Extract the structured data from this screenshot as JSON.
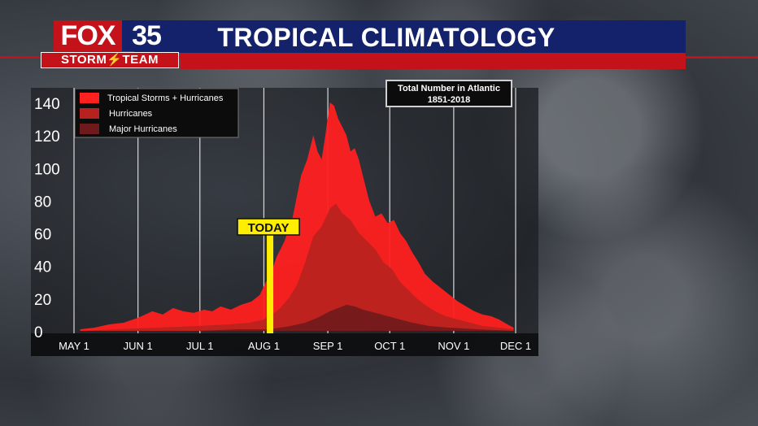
{
  "header": {
    "logo_fox": "FOX",
    "logo_number": "35",
    "logo_team": "STORM⚡TEAM",
    "title": "TROPICAL CLIMATOLOGY"
  },
  "colors": {
    "ts_hurricanes": "#ff2020",
    "hurricanes": "#b8221e",
    "major": "#6e1a1c",
    "today": "#ffee00",
    "header_blue": "#13226a",
    "header_red": "#c4121b"
  },
  "chart_data": {
    "type": "area",
    "title": "Total Number in Atlantic",
    "subtitle": "1851-2018",
    "x_ticks": [
      "MAY 1",
      "JUN 1",
      "JUL 1",
      "AUG 1",
      "SEP 1",
      "OCT 1",
      "NOV 1",
      "DEC 1"
    ],
    "y_ticks": [
      "0",
      "20",
      "40",
      "60",
      "80",
      "100",
      "120",
      "140"
    ],
    "ylim": [
      0,
      145
    ],
    "x_unit": "days since May 1",
    "xlim": [
      0,
      214
    ],
    "today_label": "TODAY",
    "today_x": 95,
    "legend_position": "top-left",
    "series": [
      {
        "name": "Tropical Storms + Hurricanes",
        "color": "#ff2020",
        "points": [
          [
            3,
            1
          ],
          [
            10,
            2
          ],
          [
            17,
            4
          ],
          [
            24,
            5
          ],
          [
            31,
            8
          ],
          [
            38,
            12
          ],
          [
            43,
            10
          ],
          [
            48,
            14
          ],
          [
            53,
            12
          ],
          [
            58,
            11
          ],
          [
            63,
            13
          ],
          [
            67,
            12
          ],
          [
            71,
            15
          ],
          [
            76,
            13
          ],
          [
            81,
            16
          ],
          [
            86,
            18
          ],
          [
            90,
            22
          ],
          [
            93,
            30
          ],
          [
            95,
            33
          ],
          [
            98,
            45
          ],
          [
            102,
            55
          ],
          [
            106,
            70
          ],
          [
            110,
            95
          ],
          [
            113,
            105
          ],
          [
            116,
            120
          ],
          [
            118,
            110
          ],
          [
            120,
            105
          ],
          [
            122,
            122
          ],
          [
            124,
            140
          ],
          [
            126,
            138
          ],
          [
            128,
            130
          ],
          [
            130,
            125
          ],
          [
            132,
            120
          ],
          [
            134,
            110
          ],
          [
            136,
            112
          ],
          [
            138,
            105
          ],
          [
            140,
            95
          ],
          [
            143,
            80
          ],
          [
            146,
            70
          ],
          [
            149,
            72
          ],
          [
            152,
            66
          ],
          [
            155,
            68
          ],
          [
            158,
            60
          ],
          [
            161,
            55
          ],
          [
            164,
            48
          ],
          [
            167,
            42
          ],
          [
            170,
            35
          ],
          [
            174,
            30
          ],
          [
            178,
            26
          ],
          [
            182,
            22
          ],
          [
            186,
            18
          ],
          [
            190,
            15
          ],
          [
            194,
            12
          ],
          [
            198,
            10
          ],
          [
            202,
            9
          ],
          [
            206,
            7
          ],
          [
            210,
            4
          ],
          [
            213,
            2
          ]
        ]
      },
      {
        "name": "Hurricanes",
        "color": "#b8221e",
        "points": [
          [
            3,
            0
          ],
          [
            20,
            1
          ],
          [
            40,
            2
          ],
          [
            60,
            3
          ],
          [
            75,
            4
          ],
          [
            85,
            5
          ],
          [
            92,
            7
          ],
          [
            96,
            10
          ],
          [
            100,
            14
          ],
          [
            104,
            20
          ],
          [
            108,
            28
          ],
          [
            112,
            42
          ],
          [
            116,
            58
          ],
          [
            120,
            64
          ],
          [
            124,
            75
          ],
          [
            127,
            78
          ],
          [
            130,
            72
          ],
          [
            134,
            68
          ],
          [
            138,
            60
          ],
          [
            142,
            55
          ],
          [
            146,
            50
          ],
          [
            150,
            42
          ],
          [
            154,
            38
          ],
          [
            158,
            30
          ],
          [
            162,
            25
          ],
          [
            166,
            20
          ],
          [
            170,
            16
          ],
          [
            175,
            12
          ],
          [
            180,
            9
          ],
          [
            186,
            7
          ],
          [
            192,
            5
          ],
          [
            198,
            3
          ],
          [
            206,
            2
          ],
          [
            213,
            1
          ]
        ]
      },
      {
        "name": "Major Hurricanes",
        "color": "#6e1a1c",
        "points": [
          [
            3,
            0
          ],
          [
            60,
            0
          ],
          [
            80,
            1
          ],
          [
            95,
            1
          ],
          [
            105,
            3
          ],
          [
            112,
            5
          ],
          [
            118,
            8
          ],
          [
            124,
            12
          ],
          [
            128,
            14
          ],
          [
            132,
            16
          ],
          [
            136,
            15
          ],
          [
            140,
            13
          ],
          [
            146,
            11
          ],
          [
            152,
            9
          ],
          [
            158,
            7
          ],
          [
            164,
            5
          ],
          [
            172,
            3
          ],
          [
            182,
            2
          ],
          [
            195,
            1
          ],
          [
            213,
            0
          ]
        ]
      }
    ]
  }
}
